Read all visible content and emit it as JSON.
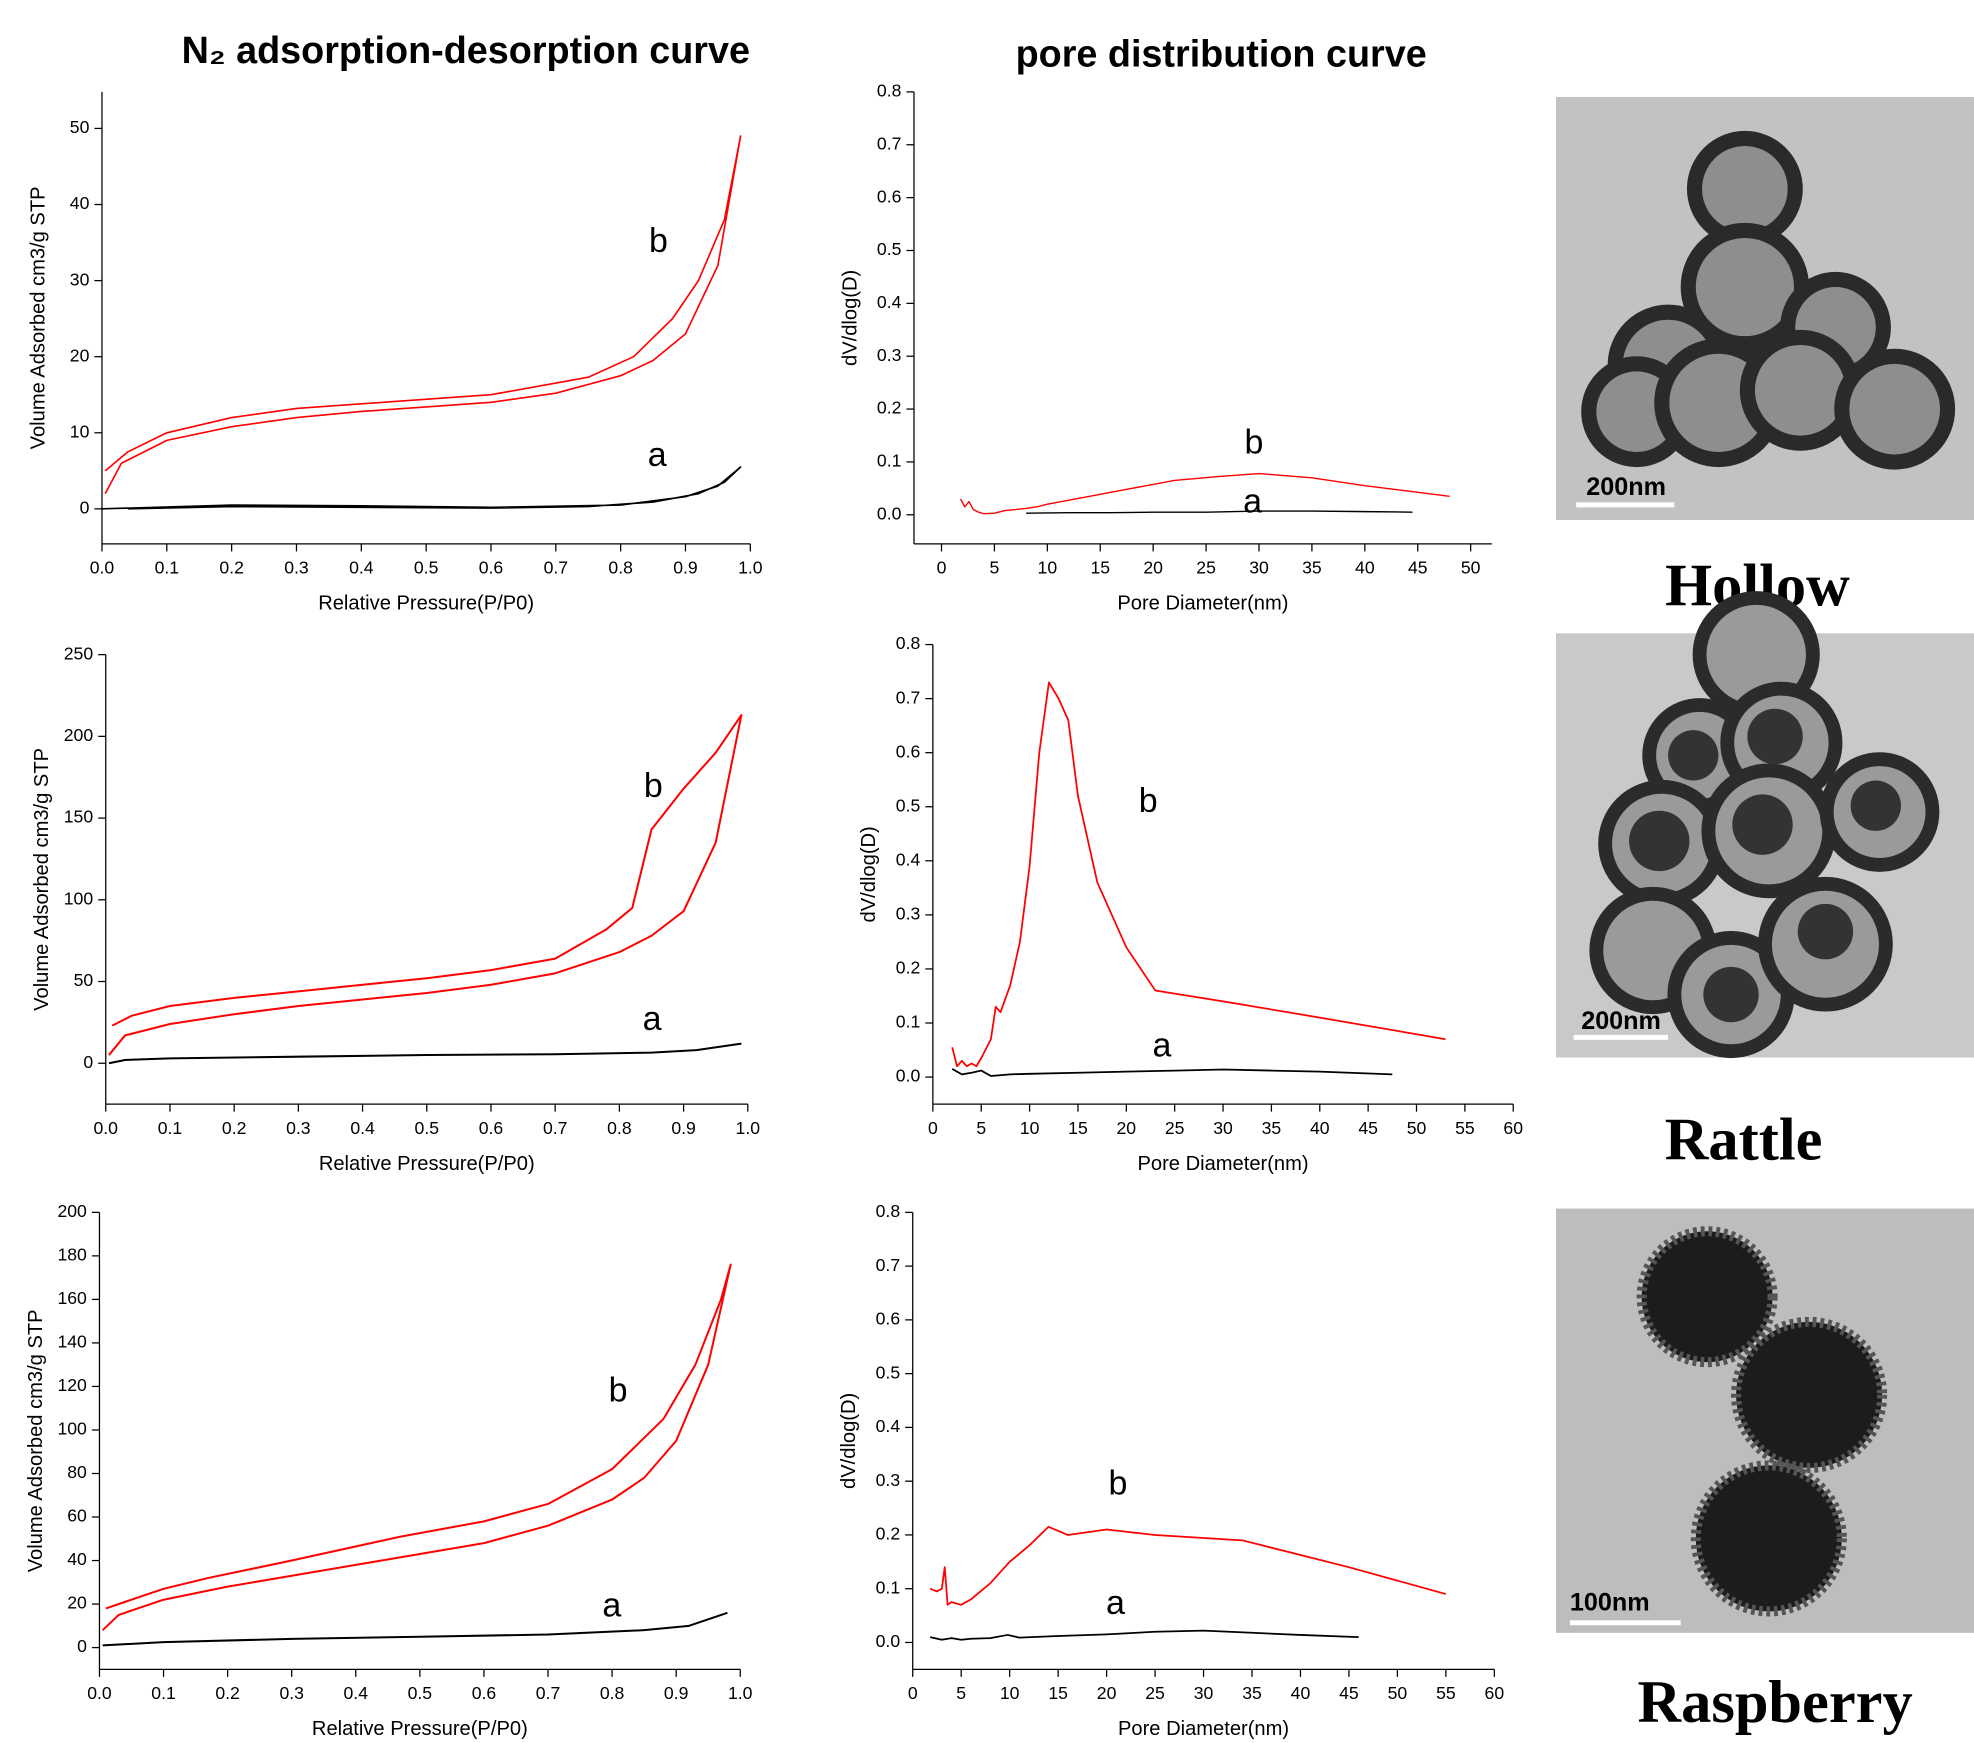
{
  "chart_data": [
    {
      "type": "line",
      "title": "N₂ adsorption-desorption  curve",
      "x_label": "Relative Pressure(P/P0)",
      "y_label": "Volume Adsorbed cm3/g STP",
      "xlim": [
        0,
        1
      ],
      "ylim": [
        -4.6,
        54.8
      ],
      "xticks": [
        {
          "value": 0,
          "label": "0.0"
        },
        0.1,
        0.2,
        0.3,
        0.4,
        0.5,
        0.6,
        0.7,
        0.8,
        0.9,
        {
          "value": 1,
          "label": "1.0"
        }
      ],
      "yticks": [
        0,
        10,
        20,
        30,
        40,
        50
      ],
      "series": [
        {
          "name": "a",
          "color": "#000000",
          "x": [
            0.04,
            0.2,
            0.4,
            0.6,
            0.75,
            0.85,
            0.92,
            0.96,
            0.985,
            0.95,
            0.9,
            0.8,
            0.6,
            0.4,
            0.2,
            0.0
          ],
          "values": [
            0,
            0.3,
            0.2,
            0.1,
            0.3,
            0.9,
            2,
            3.5,
            5.5,
            3,
            1.6,
            0.5,
            0.2,
            0.4,
            0.5,
            0
          ]
        },
        {
          "name": "b",
          "color": "#ff0000",
          "x": [
            0.005,
            0.03,
            0.1,
            0.2,
            0.3,
            0.4,
            0.5,
            0.6,
            0.7,
            0.8,
            0.85,
            0.9,
            0.95,
            0.985,
            0.96,
            0.92,
            0.88,
            0.82,
            0.75,
            0.6,
            0.4,
            0.3,
            0.2,
            0.1,
            0.04,
            0.005
          ],
          "values": [
            2,
            6,
            9,
            10.8,
            12,
            12.8,
            13.4,
            14,
            15.2,
            17.5,
            19.5,
            23,
            32,
            49,
            38,
            30,
            25,
            20,
            17.3,
            15,
            13.8,
            13.2,
            12,
            10,
            7.5,
            5
          ]
        }
      ]
    },
    {
      "type": "line",
      "title": "pore distribution curve",
      "x_label": "Pore Diameter(nm)",
      "y_label": "dV/dlog(D)",
      "xlim": [
        -2.6,
        52
      ],
      "ylim": [
        -0.055,
        0.8
      ],
      "xticks": [
        0,
        5,
        10,
        15,
        20,
        25,
        30,
        35,
        40,
        45,
        50
      ],
      "yticks": [
        {
          "value": 0,
          "label": "0.0"
        },
        0.1,
        0.2,
        0.3,
        0.4,
        0.5,
        0.6,
        0.7,
        0.8
      ],
      "series": [
        {
          "name": "a",
          "color": "#000000",
          "x": [
            8,
            12,
            16,
            20,
            25,
            30,
            35,
            40,
            44.5
          ],
          "values": [
            0.003,
            0.004,
            0.004,
            0.005,
            0.005,
            0.007,
            0.007,
            0.006,
            0.005
          ]
        },
        {
          "name": "b",
          "color": "#ff0000",
          "x": [
            1.8,
            2.2,
            2.6,
            3,
            3.5,
            4,
            5,
            6,
            7,
            8,
            9,
            10,
            14,
            18,
            22,
            26,
            30,
            35,
            40,
            48
          ],
          "values": [
            0.03,
            0.015,
            0.025,
            0.01,
            0.005,
            0.002,
            0.003,
            0.008,
            0.01,
            0.012,
            0.015,
            0.02,
            0.035,
            0.05,
            0.065,
            0.072,
            0.078,
            0.07,
            0.055,
            0.035
          ]
        }
      ]
    },
    {
      "type": "line",
      "x_label": "Relative Pressure(P/P0)",
      "y_label": "Volume Adsorbed cm3/g STP",
      "xlim": [
        0,
        1
      ],
      "ylim": [
        -25,
        250
      ],
      "xticks": [
        {
          "value": 0,
          "label": "0.0"
        },
        0.1,
        0.2,
        0.3,
        0.4,
        0.5,
        0.6,
        0.7,
        0.8,
        0.9,
        {
          "value": 1,
          "label": "1.0"
        }
      ],
      "yticks": [
        0,
        50,
        100,
        150,
        200,
        250
      ],
      "series": [
        {
          "name": "a",
          "color": "#000000",
          "x": [
            0.005,
            0.03,
            0.1,
            0.3,
            0.5,
            0.7,
            0.85,
            0.92,
            0.99
          ],
          "values": [
            0,
            2,
            3,
            4,
            5,
            5.5,
            6.5,
            8,
            12
          ]
        },
        {
          "name": "b",
          "color": "#ff0000",
          "x": [
            0.005,
            0.03,
            0.1,
            0.2,
            0.3,
            0.4,
            0.5,
            0.6,
            0.7,
            0.8,
            0.85,
            0.9,
            0.95,
            0.99,
            0.95,
            0.9,
            0.85,
            0.82,
            0.78,
            0.7,
            0.6,
            0.5,
            0.4,
            0.3,
            0.2,
            0.1,
            0.04,
            0.01
          ],
          "values": [
            5,
            17,
            24,
            30,
            35,
            39,
            43,
            48,
            55,
            68,
            78,
            93,
            135,
            213,
            190,
            168,
            143,
            95,
            82,
            64,
            57,
            52,
            48,
            44,
            40,
            35,
            29,
            23
          ]
        }
      ]
    },
    {
      "type": "line",
      "x_label": "Pore Diameter(nm)",
      "y_label": "dV/dlog(D)",
      "xlim": [
        0,
        60
      ],
      "ylim": [
        -0.05,
        0.8
      ],
      "xticks": [
        0,
        5,
        10,
        15,
        20,
        25,
        30,
        35,
        40,
        45,
        50,
        55,
        60
      ],
      "yticks": [
        {
          "value": 0,
          "label": "0.0"
        },
        0.1,
        0.2,
        0.3,
        0.4,
        0.5,
        0.6,
        0.7,
        0.8
      ],
      "series": [
        {
          "name": "a",
          "color": "#000000",
          "x": [
            2,
            3,
            4,
            5,
            6,
            8,
            10,
            15,
            20,
            25,
            30,
            35,
            40,
            47.5
          ],
          "values": [
            0.015,
            0.005,
            0.008,
            0.012,
            0.002,
            0.005,
            0.006,
            0.008,
            0.01,
            0.012,
            0.014,
            0.012,
            0.01,
            0.005
          ]
        },
        {
          "name": "b",
          "color": "#ff0000",
          "x": [
            2,
            2.5,
            3,
            3.5,
            4,
            4.5,
            5,
            6,
            6.5,
            7,
            8,
            9,
            10,
            11,
            12,
            13,
            14,
            15,
            17,
            20,
            23,
            30,
            40,
            53
          ],
          "values": [
            0.055,
            0.02,
            0.03,
            0.02,
            0.025,
            0.02,
            0.035,
            0.07,
            0.13,
            0.12,
            0.17,
            0.25,
            0.39,
            0.6,
            0.73,
            0.7,
            0.66,
            0.52,
            0.36,
            0.24,
            0.16,
            0.14,
            0.11,
            0.07
          ]
        }
      ]
    },
    {
      "type": "line",
      "x_label": "Relative Pressure(P/P0)",
      "y_label": "Volume Adsorbed cm3/g STP",
      "xlim": [
        0,
        1
      ],
      "ylim": [
        -10,
        200
      ],
      "xticks": [
        {
          "value": 0,
          "label": "0.0"
        },
        0.1,
        0.2,
        0.3,
        0.4,
        0.5,
        0.6,
        0.7,
        0.8,
        0.9,
        {
          "value": 1,
          "label": "1.0"
        }
      ],
      "yticks": [
        0,
        20,
        40,
        60,
        80,
        100,
        120,
        140,
        160,
        180,
        200
      ],
      "series": [
        {
          "name": "a",
          "color": "#000000",
          "x": [
            0.005,
            0.1,
            0.3,
            0.5,
            0.7,
            0.85,
            0.92,
            0.98
          ],
          "values": [
            1,
            2.5,
            4,
            5,
            6,
            8,
            10,
            16
          ]
        },
        {
          "name": "b",
          "color": "#ff0000",
          "x": [
            0.005,
            0.03,
            0.1,
            0.2,
            0.3,
            0.4,
            0.5,
            0.6,
            0.7,
            0.8,
            0.85,
            0.9,
            0.95,
            0.985,
            0.97,
            0.93,
            0.88,
            0.8,
            0.7,
            0.6,
            0.47,
            0.3,
            0.17,
            0.1,
            0.04,
            0.01
          ],
          "values": [
            8,
            15,
            22,
            28,
            33,
            38,
            43,
            48,
            56,
            68,
            78,
            95,
            130,
            176,
            160,
            130,
            105,
            82,
            66,
            58,
            51,
            40,
            32,
            27,
            21,
            18
          ]
        }
      ]
    },
    {
      "type": "line",
      "x_label": "Pore Diameter(nm)",
      "y_label": "dV/dlog(D)",
      "xlim": [
        0,
        60
      ],
      "ylim": [
        -0.05,
        0.8
      ],
      "xticks": [
        0,
        5,
        10,
        15,
        20,
        25,
        30,
        35,
        40,
        45,
        50,
        55,
        60
      ],
      "yticks": [
        {
          "value": 0,
          "label": "0.0"
        },
        0.1,
        0.2,
        0.3,
        0.4,
        0.5,
        0.6,
        0.7,
        0.8
      ],
      "series": [
        {
          "name": "a",
          "color": "#000000",
          "x": [
            1.8,
            3,
            4,
            5,
            6,
            8,
            9.8,
            11,
            15,
            20,
            25,
            30,
            35,
            40,
            46
          ],
          "values": [
            0.01,
            0.005,
            0.008,
            0.005,
            0.007,
            0.008,
            0.014,
            0.009,
            0.012,
            0.015,
            0.02,
            0.022,
            0.018,
            0.014,
            0.01
          ]
        },
        {
          "name": "b",
          "color": "#ff0000",
          "x": [
            1.8,
            2.5,
            3,
            3.3,
            3.6,
            4,
            5,
            6,
            8,
            10,
            12,
            14,
            16,
            20,
            25,
            34,
            45,
            55
          ],
          "values": [
            0.1,
            0.095,
            0.1,
            0.14,
            0.07,
            0.075,
            0.07,
            0.08,
            0.11,
            0.15,
            0.18,
            0.215,
            0.2,
            0.21,
            0.2,
            0.19,
            0.14,
            0.09
          ]
        }
      ]
    }
  ],
  "images": [
    {
      "scale_bar": "200nm",
      "caption": "Hollow"
    },
    {
      "scale_bar": "200nm",
      "caption": "Rattle"
    },
    {
      "scale_bar": "100nm",
      "caption": "Raspberry"
    }
  ]
}
